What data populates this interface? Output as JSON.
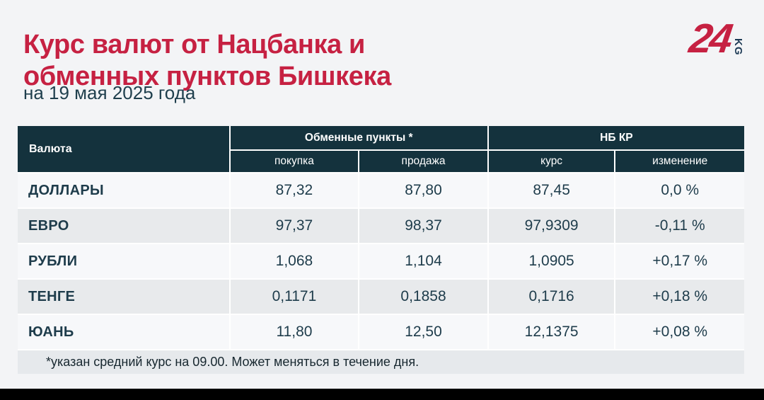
{
  "header": {
    "logo": {
      "number": "24",
      "suffix": "KG"
    }
  },
  "chart_data": {
    "type": "table",
    "title": "Курс валют от Нацбанка и\nобменных пунктов Бишкека",
    "date": "на 19 мая 2025 года",
    "table_header": {
      "currency_col": "Валюта",
      "groups": [
        {
          "label": "Обменные пункты *",
          "subcols": [
            "покупка",
            "продажа"
          ]
        },
        {
          "label": "НБ КР",
          "subcols": [
            "курс",
            "изменение"
          ]
        }
      ]
    },
    "rows": [
      {
        "currency": "ДОЛЛАРЫ",
        "buy": "87,32",
        "sell": "87,80",
        "rate": "87,45",
        "change": "0,0 %"
      },
      {
        "currency": "ЕВРО",
        "buy": "97,37",
        "sell": "98,37",
        "rate": "97,9309",
        "change": "-0,11 %"
      },
      {
        "currency": "РУБЛИ",
        "buy": "1,068",
        "sell": "1,104",
        "rate": "1,0905",
        "change": "+0,17 %"
      },
      {
        "currency": "ТЕНГЕ",
        "buy": "0,1171",
        "sell": "0,1858",
        "rate": "0,1716",
        "change": "+0,18 %"
      },
      {
        "currency": "ЮАНЬ",
        "buy": "11,80",
        "sell": "12,50",
        "rate": "12,1375",
        "change": "+0,08 %"
      }
    ],
    "footnote": "*указан средний курс на 09.00. Может меняться в течение дня."
  },
  "colors": {
    "accent_red": "#c62142",
    "header_bg": "#14323d",
    "row_base": "#f7f8fa",
    "row_alt": "#e8eaec",
    "footnote_bg": "#e6e9ec",
    "text_dark": "#1e3c4b",
    "logo_kg": "#1d3a55",
    "bottom_bar": "#000000"
  }
}
